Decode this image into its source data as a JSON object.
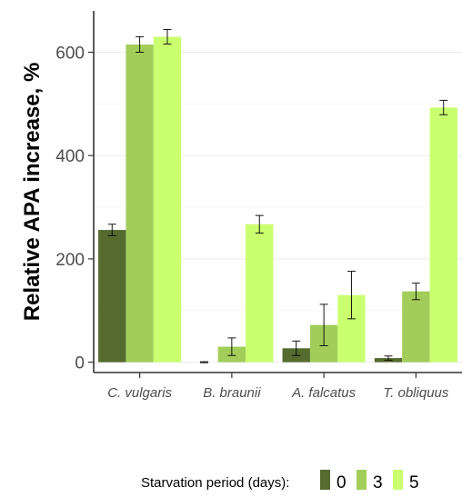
{
  "chart_data": {
    "type": "bar",
    "categories": [
      "C. vulgaris",
      "B. braunii",
      "A. falcatus",
      "T. obliquus"
    ],
    "ylabel": "Relative APA increase, %",
    "ylim": [
      -20,
      680
    ],
    "yticks": [
      0,
      200,
      400,
      600
    ],
    "grid": true,
    "legend": {
      "title": "Starvation period (days):",
      "placement": "bottom"
    },
    "series": [
      {
        "name": "0",
        "color": "#556b2f",
        "values": [
          256,
          0,
          27,
          8
        ],
        "errors": [
          11,
          1,
          14,
          4
        ]
      },
      {
        "name": "3",
        "color": "#a2cd5a",
        "values": [
          615,
          30,
          72,
          137
        ],
        "errors": [
          15,
          17,
          40,
          16
        ]
      },
      {
        "name": "5",
        "color": "#caff70",
        "values": [
          630,
          267,
          130,
          493
        ],
        "errors": [
          14,
          17,
          46,
          14
        ]
      }
    ]
  }
}
